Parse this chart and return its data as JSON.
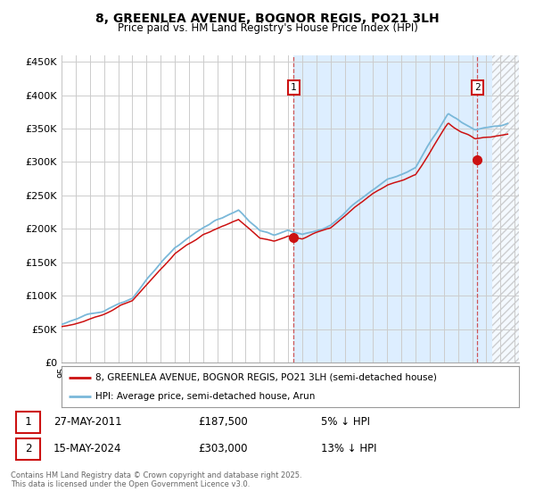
{
  "title": "8, GREENLEA AVENUE, BOGNOR REGIS, PO21 3LH",
  "subtitle": "Price paid vs. HM Land Registry's House Price Index (HPI)",
  "ylabel_ticks": [
    "£0",
    "£50K",
    "£100K",
    "£150K",
    "£200K",
    "£250K",
    "£300K",
    "£350K",
    "£400K",
    "£450K"
  ],
  "ytick_values": [
    0,
    50000,
    100000,
    150000,
    200000,
    250000,
    300000,
    350000,
    400000,
    450000
  ],
  "ylim": [
    0,
    460000
  ],
  "xlim_start": 1995.0,
  "xlim_end": 2027.3,
  "hpi_color": "#7ab8d9",
  "price_color": "#cc1111",
  "shade_color": "#ddeeff",
  "hatch_start": 2025.4,
  "marker1_x": 2011.4,
  "marker1_y": 187500,
  "marker2_x": 2024.37,
  "marker2_y": 303000,
  "vline1_x": 2011.4,
  "vline2_x": 2024.37,
  "legend_line1": "8, GREENLEA AVENUE, BOGNOR REGIS, PO21 3LH (semi-detached house)",
  "legend_line2": "HPI: Average price, semi-detached house, Arun",
  "footer": "Contains HM Land Registry data © Crown copyright and database right 2025.\nThis data is licensed under the Open Government Licence v3.0.",
  "bg_color": "#ffffff",
  "grid_color": "#cccccc",
  "vline_color": "#cc4444"
}
